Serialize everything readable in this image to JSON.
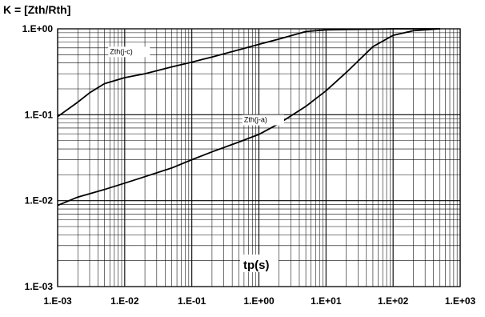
{
  "chart_data": {
    "type": "line",
    "title": "K = [Zth/Rth]",
    "xlabel": "tp(s)",
    "ylabel": "",
    "x_scale": "log",
    "y_scale": "log",
    "xlim": [
      0.001,
      1000
    ],
    "ylim": [
      0.001,
      1
    ],
    "grid": true,
    "x_tick_labels": [
      "1.E-03",
      "1.E-02",
      "1.E-01",
      "1.E+00",
      "1.E+01",
      "1.E+02",
      "1.E+03"
    ],
    "y_tick_labels": [
      "1.E-03",
      "1.E-02",
      "1.E-01",
      "1.E+00"
    ],
    "series": [
      {
        "name": "Zth(j-c)",
        "x": [
          0.001,
          0.002,
          0.003,
          0.005,
          0.01,
          0.02,
          0.05,
          0.1,
          0.2,
          0.5,
          1,
          2,
          5,
          10,
          20,
          50,
          100,
          500
        ],
        "y": [
          0.095,
          0.14,
          0.18,
          0.23,
          0.27,
          0.3,
          0.36,
          0.41,
          0.47,
          0.57,
          0.66,
          0.76,
          0.93,
          0.97,
          0.98,
          0.99,
          1.0,
          1.0
        ]
      },
      {
        "name": "Zth(j-a)",
        "x": [
          0.001,
          0.002,
          0.005,
          0.01,
          0.02,
          0.05,
          0.1,
          0.2,
          0.5,
          1,
          2,
          5,
          10,
          20,
          50,
          100,
          200,
          500
        ],
        "y": [
          0.0088,
          0.011,
          0.0135,
          0.016,
          0.019,
          0.024,
          0.03,
          0.037,
          0.048,
          0.059,
          0.079,
          0.125,
          0.19,
          0.31,
          0.62,
          0.84,
          0.95,
          1.0
        ]
      }
    ]
  }
}
